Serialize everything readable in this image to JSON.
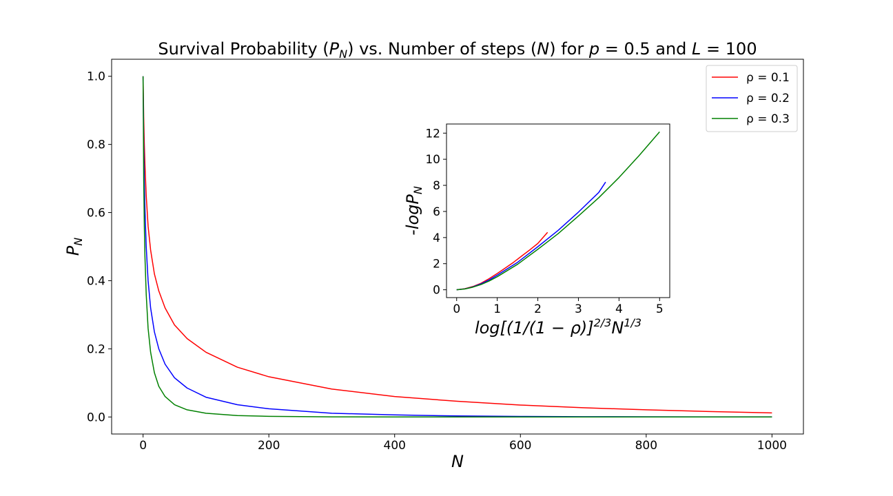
{
  "chart_data": [
    {
      "type": "line",
      "title": "Survival Probability (P_N) vs. Number of steps (N) for p = 0.5 and L = 100",
      "title_parts": {
        "prefix": "Survival Probability (",
        "pn_base": "P",
        "pn_sub": "N",
        "mid": ") vs. Number of steps (",
        "n_var": "N",
        "mid2": ") for ",
        "p_var": "p",
        "p_eq": " = 0.5 and ",
        "l_var": "L",
        "l_eq": " = 100"
      },
      "xlabel": "N",
      "ylabel_base": "P",
      "ylabel_sub": "N",
      "xlim": [
        -50,
        1050
      ],
      "ylim": [
        -0.05,
        1.05
      ],
      "xticks": [
        "0",
        "200",
        "400",
        "600",
        "800",
        "1000"
      ],
      "xtick_values": [
        0,
        200,
        400,
        600,
        800,
        1000
      ],
      "yticks": [
        "0.0",
        "0.2",
        "0.4",
        "0.6",
        "0.8",
        "1.0"
      ],
      "ytick_values": [
        0.0,
        0.2,
        0.4,
        0.6,
        0.8,
        1.0
      ],
      "grid": false,
      "legend_position": "top-right",
      "series": [
        {
          "name": "ρ = 0.1",
          "color": "#ff0000",
          "x": [
            0,
            1,
            2,
            3,
            5,
            8,
            12,
            18,
            25,
            35,
            50,
            70,
            100,
            150,
            200,
            300,
            400,
            500,
            600,
            700,
            800,
            900,
            1000
          ],
          "y": [
            1.0,
            0.88,
            0.8,
            0.74,
            0.65,
            0.56,
            0.49,
            0.42,
            0.37,
            0.32,
            0.27,
            0.23,
            0.19,
            0.146,
            0.118,
            0.082,
            0.06,
            0.046,
            0.035,
            0.027,
            0.021,
            0.016,
            0.012
          ]
        },
        {
          "name": "ρ = 0.2",
          "color": "#0000ff",
          "x": [
            0,
            1,
            2,
            3,
            5,
            8,
            12,
            18,
            25,
            35,
            50,
            70,
            100,
            150,
            200,
            300,
            400,
            500,
            600,
            700,
            800,
            900,
            1000
          ],
          "y": [
            1.0,
            0.8,
            0.69,
            0.61,
            0.5,
            0.4,
            0.32,
            0.25,
            0.2,
            0.155,
            0.115,
            0.085,
            0.058,
            0.036,
            0.024,
            0.011,
            0.006,
            0.003,
            0.0016,
            0.0009,
            0.0005,
            0.0003,
            0.0002
          ]
        },
        {
          "name": "ρ = 0.3",
          "color": "#008000",
          "x": [
            0,
            1,
            2,
            3,
            5,
            8,
            12,
            18,
            25,
            35,
            50,
            70,
            100,
            150,
            200,
            300,
            400,
            500,
            600,
            700,
            800,
            900,
            1000
          ],
          "y": [
            1.0,
            0.7,
            0.56,
            0.47,
            0.36,
            0.26,
            0.19,
            0.13,
            0.09,
            0.06,
            0.036,
            0.021,
            0.011,
            0.004,
            0.0018,
            0.0004,
            0.0001,
            3e-05,
            1e-05,
            0.0,
            0.0,
            0.0,
            0.0
          ]
        }
      ]
    },
    {
      "type": "line",
      "xlabel": "log[(1/(1 − ρ)]^{2/3} N^{1/3}",
      "xlabel_parts": {
        "main": "log[(1/(1 − ρ)]",
        "sup1": "2/3",
        "n_var": "N",
        "sup2": "1/3"
      },
      "ylabel": "-logP_N",
      "ylabel_base": "-logP",
      "ylabel_sub": "N",
      "xlim": [
        -0.25,
        5.25
      ],
      "ylim": [
        -0.6,
        12.7
      ],
      "xticks": [
        "0",
        "1",
        "2",
        "3",
        "4",
        "5"
      ],
      "xtick_values": [
        0,
        1,
        2,
        3,
        4,
        5
      ],
      "yticks": [
        "0",
        "2",
        "4",
        "6",
        "8",
        "10",
        "12"
      ],
      "ytick_values": [
        0,
        2,
        4,
        6,
        8,
        10,
        12
      ],
      "grid": false,
      "series": [
        {
          "name": "ρ = 0.1",
          "color": "#ff0000",
          "x": [
            0.0,
            0.2,
            0.4,
            0.6,
            0.8,
            1.0,
            1.2,
            1.4,
            1.6,
            1.8,
            2.0,
            2.24
          ],
          "y": [
            0.0,
            0.08,
            0.25,
            0.5,
            0.85,
            1.25,
            1.67,
            2.1,
            2.58,
            3.05,
            3.55,
            4.4
          ]
        },
        {
          "name": "ρ = 0.2",
          "color": "#0000ff",
          "x": [
            0.0,
            0.2,
            0.4,
            0.6,
            0.8,
            1.0,
            1.5,
            2.0,
            2.5,
            3.0,
            3.5,
            3.67
          ],
          "y": [
            0.0,
            0.07,
            0.22,
            0.45,
            0.75,
            1.12,
            2.1,
            3.3,
            4.55,
            5.95,
            7.45,
            8.25
          ]
        },
        {
          "name": "ρ = 0.3",
          "color": "#008000",
          "x": [
            0.0,
            0.2,
            0.4,
            0.6,
            0.8,
            1.0,
            1.5,
            2.0,
            2.5,
            3.0,
            3.5,
            4.0,
            4.5,
            5.0
          ],
          "y": [
            0.0,
            0.06,
            0.2,
            0.4,
            0.67,
            1.0,
            1.95,
            3.1,
            4.3,
            5.65,
            7.05,
            8.6,
            10.3,
            12.1
          ]
        }
      ]
    }
  ]
}
